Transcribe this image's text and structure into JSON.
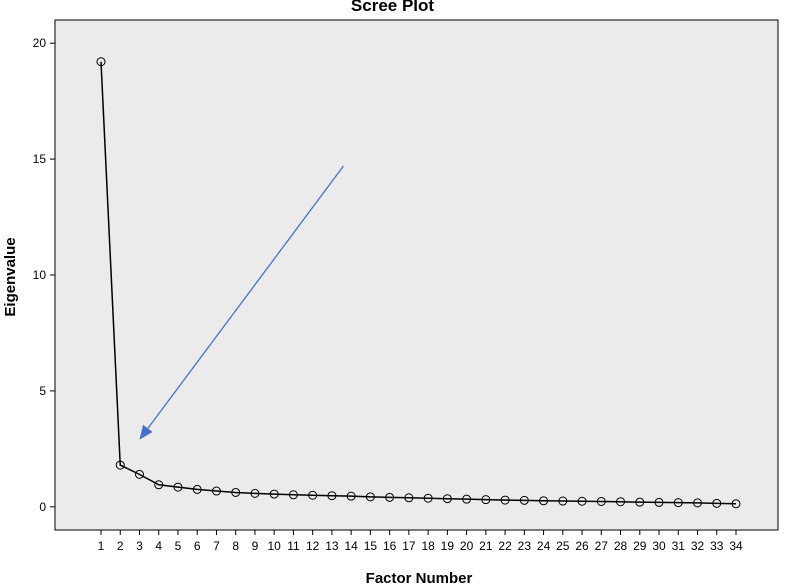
{
  "chart_data": {
    "type": "line",
    "title": "Scree Plot",
    "xlabel": "Factor Number",
    "ylabel": "Eigenvalue",
    "x": [
      1,
      2,
      3,
      4,
      5,
      6,
      7,
      8,
      9,
      10,
      11,
      12,
      13,
      14,
      15,
      16,
      17,
      18,
      19,
      20,
      21,
      22,
      23,
      24,
      25,
      26,
      27,
      28,
      29,
      30,
      31,
      32,
      33,
      34
    ],
    "y": [
      19.2,
      1.8,
      1.4,
      0.95,
      0.85,
      0.75,
      0.68,
      0.62,
      0.58,
      0.55,
      0.52,
      0.5,
      0.48,
      0.46,
      0.43,
      0.41,
      0.39,
      0.37,
      0.35,
      0.33,
      0.31,
      0.29,
      0.28,
      0.26,
      0.25,
      0.24,
      0.23,
      0.22,
      0.2,
      0.19,
      0.18,
      0.17,
      0.15,
      0.13
    ],
    "ylim": [
      -1,
      21
    ],
    "yticks": [
      0,
      5,
      10,
      15,
      20
    ],
    "grid": false,
    "marker": "open-circle",
    "colors": {
      "plot_background": "#ebebeb",
      "line": "#000000",
      "annotation_arrow": "#4472c4"
    },
    "annotations": [
      {
        "type": "arrow",
        "from": {
          "x": 13.6,
          "y": 14.7
        },
        "to": {
          "x": 3.0,
          "y": 2.9
        }
      }
    ]
  }
}
